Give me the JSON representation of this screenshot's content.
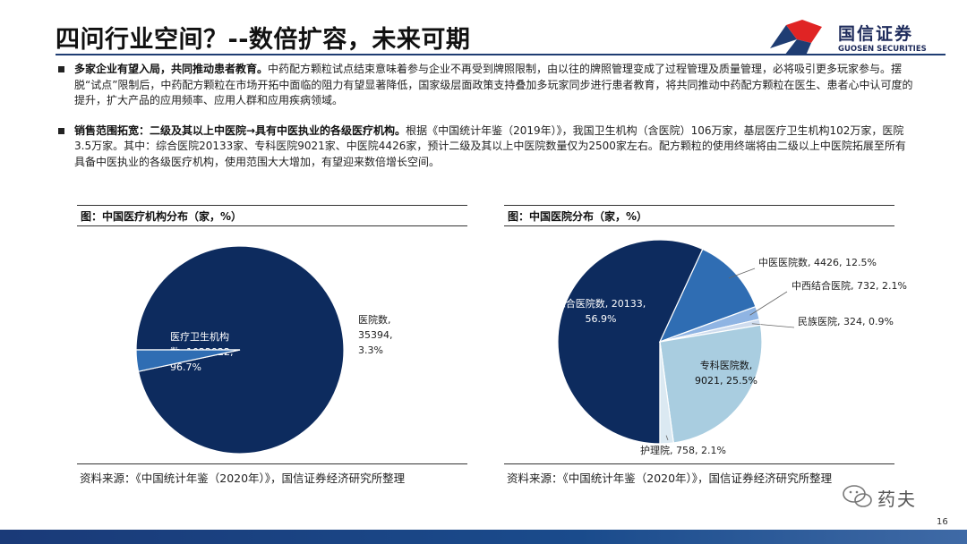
{
  "title": "四问行业空间？--数倍扩容，未来可期",
  "logo": {
    "name": "国信证券",
    "subtitle": "GUOSEN SECURITIES"
  },
  "bullets": [
    {
      "bold": "多家企业有望入局，共同推动患者教育。",
      "text": "中药配方颗粒试点结束意味着参与企业不再受到牌照限制，由以往的牌照管理变成了过程管理及质量管理，必将吸引更多玩家参与。摆脱“试点”限制后，中药配方颗粒在市场开拓中面临的阻力有望显著降低，国家级层面政策支持叠加多玩家同步进行患者教育，将共同推动中药配方颗粒在医生、患者心中认可度的提升，扩大产品的应用频率、应用人群和应用疾病领域。"
    },
    {
      "bold": "销售范围拓宽：二级及其以上中医院→具有中医执业的各级医疗机构。",
      "text": "根据《中国统计年鉴（2019年）》，我国卫生机构（含医院）106万家，基层医疗卫生机构102万家，医院3.5万家。其中：综合医院20133家、专科医院9021家、中医院4426家，预计二级及其以上中医院数量仅为2500家左右。配方颗粒的使用终端将由二级以上中医院拓展至所有具备中医执业的各级医疗机构，使用范围大大增加，有望迎来数倍增长空间。"
    }
  ],
  "figures": [
    {
      "heading": "图：中国医疗机构分布（家，%）",
      "source": "资料来源：《中国统计年鉴（2020年）》，国信证券经济研究所整理"
    },
    {
      "heading": "图：中国医院分布（家，%）",
      "source": "资料来源：《中国统计年鉴（2020年）》，国信证券经济研究所整理"
    }
  ],
  "chart_data": [
    {
      "type": "pie",
      "title": "图：中国医疗机构分布（家，%）",
      "slices": [
        {
          "label": "医疗卫生机构数",
          "value": 1022922,
          "percent": 96.7,
          "color": "#0d2b5e"
        },
        {
          "label": "医院数",
          "value": 35394,
          "percent": 3.3,
          "color": "#2f6db3"
        }
      ],
      "data_labels": [
        [
          "医疗卫生机构",
          "数, 1022922,",
          "96.7%"
        ],
        [
          "医院数,",
          "35394,",
          "3.3%"
        ]
      ]
    },
    {
      "type": "pie",
      "title": "图：中国医院分布（家，%）",
      "slices": [
        {
          "label": "综合医院数",
          "value": 20133,
          "percent": 56.9,
          "color": "#0d2b5e"
        },
        {
          "label": "中医医院数",
          "value": 4426,
          "percent": 12.5,
          "color": "#2f6db3"
        },
        {
          "label": "中西结合医院",
          "value": 732,
          "percent": 2.1,
          "color": "#8fb4e3"
        },
        {
          "label": "民族医院",
          "value": 324,
          "percent": 0.9,
          "color": "#cfdcee"
        },
        {
          "label": "专科医院数",
          "value": 9021,
          "percent": 25.5,
          "color": "#a9cde0"
        },
        {
          "label": "护理院",
          "value": 758,
          "percent": 2.1,
          "color": "#dbe9f2"
        }
      ],
      "data_labels": [
        [
          "综合医院数, 20133,",
          "56.9%"
        ],
        [
          "中医医院数, 4426, 12.5%"
        ],
        [
          "中西结合医院, 732, 2.1%"
        ],
        [
          "民族医院, 324, 0.9%"
        ],
        [
          "专科医院数,",
          "9021, 25.5%"
        ],
        [
          "护理院, 758, 2.1%"
        ]
      ]
    }
  ],
  "watermark": "药夫",
  "page_number": "16"
}
